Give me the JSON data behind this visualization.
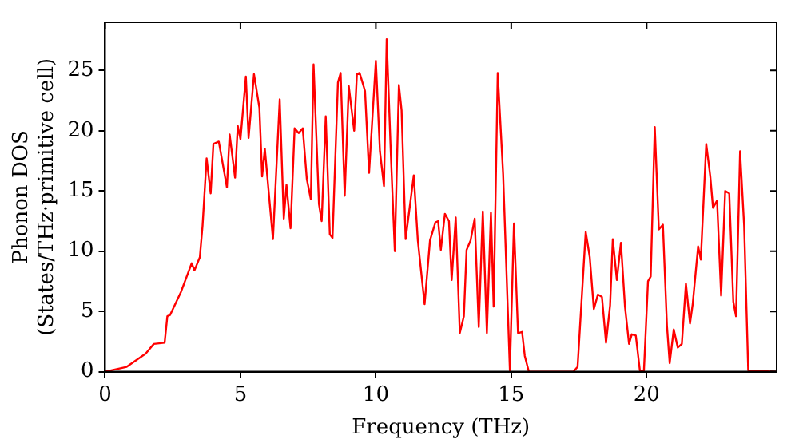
{
  "chart_data": {
    "type": "line",
    "xlabel": "Frequency (THz)",
    "ylabel": "Phonon DOS\n(States/THz·primitive cell)",
    "xlim": [
      0,
      24.8
    ],
    "xticks": [
      0,
      5,
      10,
      15,
      20
    ],
    "ylim": [
      0,
      29
    ],
    "yticks": [
      0,
      5,
      10,
      15,
      20,
      25
    ],
    "grid": false,
    "legend": false,
    "marker": "none",
    "line_style": "solid",
    "series": [
      {
        "color": "#ff0000",
        "x": [
          0,
          0.8,
          1.5,
          1.8,
          2.2,
          2.3,
          2.4,
          2.8,
          3.0,
          3.2,
          3.3,
          3.5,
          3.6,
          3.75,
          3.9,
          4.0,
          4.2,
          4.5,
          4.6,
          4.8,
          4.9,
          5.0,
          5.2,
          5.3,
          5.5,
          5.7,
          5.8,
          5.9,
          6.2,
          6.45,
          6.6,
          6.7,
          6.85,
          7.0,
          7.15,
          7.3,
          7.45,
          7.6,
          7.7,
          7.9,
          8.0,
          8.15,
          8.3,
          8.4,
          8.6,
          8.7,
          8.85,
          9.0,
          9.2,
          9.3,
          9.4,
          9.6,
          9.75,
          10.0,
          10.15,
          10.3,
          10.4,
          10.55,
          10.7,
          10.85,
          10.95,
          11.1,
          11.4,
          11.55,
          11.8,
          12.0,
          12.2,
          12.3,
          12.4,
          12.55,
          12.7,
          12.8,
          12.95,
          13.1,
          13.25,
          13.35,
          13.5,
          13.65,
          13.8,
          13.95,
          14.1,
          14.25,
          14.35,
          14.5,
          14.7,
          14.95,
          15.1,
          15.25,
          15.4,
          15.5,
          15.65,
          17.3,
          17.45,
          17.75,
          17.9,
          18.05,
          18.2,
          18.35,
          18.5,
          18.65,
          18.75,
          18.9,
          19.05,
          19.2,
          19.35,
          19.45,
          19.6,
          19.75,
          19.9,
          20.05,
          20.15,
          20.3,
          20.45,
          20.6,
          20.75,
          20.85,
          21.0,
          21.15,
          21.3,
          21.45,
          21.6,
          21.7,
          21.9,
          22.0,
          22.2,
          22.35,
          22.45,
          22.6,
          22.75,
          22.9,
          23.05,
          23.2,
          23.3,
          23.45,
          23.6,
          23.75,
          24.8
        ],
        "values": [
          0,
          0.4,
          1.5,
          2.3,
          2.4,
          4.6,
          4.7,
          6.6,
          7.8,
          9.0,
          8.4,
          9.5,
          12.1,
          17.7,
          14.8,
          18.9,
          19.1,
          15.3,
          19.7,
          16.1,
          20.4,
          19.3,
          24.5,
          19.4,
          24.7,
          21.9,
          16.2,
          18.5,
          11.0,
          22.6,
          12.7,
          15.5,
          11.9,
          20.2,
          19.8,
          20.2,
          16.0,
          14.3,
          25.5,
          13.9,
          12.5,
          21.2,
          11.4,
          11.1,
          24.0,
          24.8,
          14.6,
          23.7,
          20.0,
          24.7,
          24.8,
          23.3,
          16.5,
          25.8,
          18.3,
          15.4,
          27.6,
          18.3,
          10.0,
          23.8,
          21.7,
          11.0,
          16.3,
          10.9,
          5.6,
          10.9,
          12.4,
          12.5,
          10.1,
          13.1,
          12.5,
          7.6,
          12.8,
          3.2,
          4.6,
          10.1,
          10.9,
          12.7,
          3.7,
          13.3,
          3.2,
          13.2,
          5.4,
          24.8,
          16.4,
          0.1,
          12.3,
          3.2,
          3.3,
          1.3,
          0,
          0,
          0.4,
          11.6,
          9.5,
          5.2,
          6.4,
          6.2,
          2.4,
          5.5,
          11.0,
          7.6,
          10.7,
          5.4,
          2.3,
          3.1,
          3.0,
          0.1,
          0.1,
          7.5,
          7.9,
          20.3,
          11.8,
          12.2,
          3.8,
          0.7,
          3.5,
          2.0,
          2.3,
          7.3,
          4.0,
          5.6,
          10.4,
          9.3,
          18.9,
          16.2,
          13.6,
          14.2,
          6.3,
          15.0,
          14.8,
          5.8,
          4.6,
          18.3,
          12.1,
          0.1,
          0
        ]
      }
    ]
  }
}
